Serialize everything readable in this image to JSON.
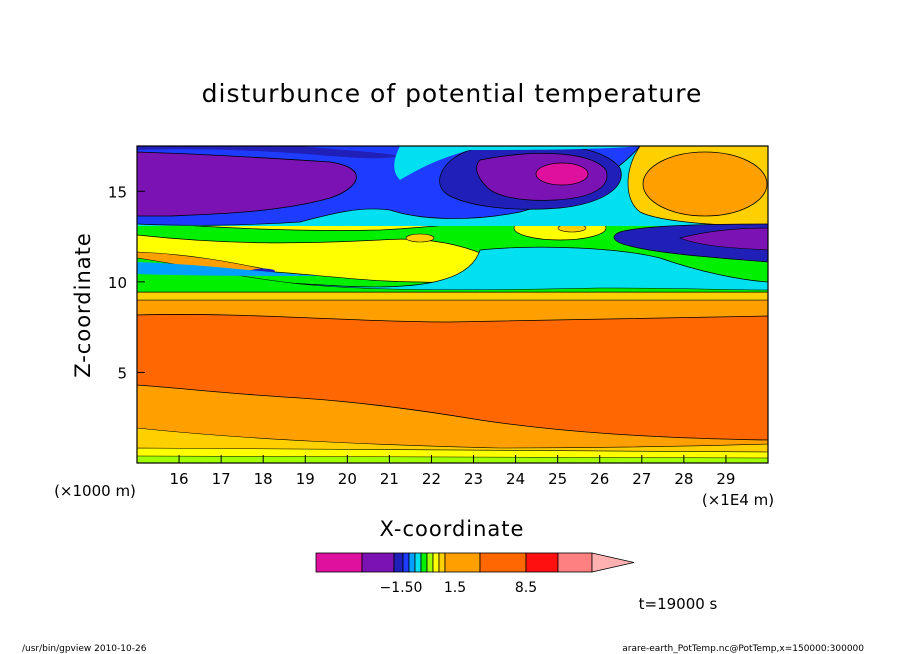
{
  "chart_data": {
    "type": "heatmap",
    "title": "disturbunce of potential temperature",
    "xlabel": "X-coordinate",
    "ylabel": "Z-coordinate",
    "xunit": "(×1E4 m)",
    "yunit": "(×1000 m)",
    "xlim": [
      15.0,
      30.0
    ],
    "ylim": [
      0.0,
      17.5
    ],
    "xticks": [
      "16",
      "17",
      "18",
      "19",
      "20",
      "21",
      "22",
      "23",
      "24",
      "25",
      "26",
      "27",
      "28",
      "29"
    ],
    "yticks": [
      "5",
      "10",
      "15"
    ],
    "colorbar": {
      "labels": [
        "−1.50",
        "1.5",
        "8.5"
      ],
      "colors": [
        "#e0109e",
        "#7a12b4",
        "#2020b8",
        "#1e3cff",
        "#00a0ff",
        "#00e0f0",
        "#00f000",
        "#a0ff00",
        "#ffff00",
        "#ffd000",
        "#ffa000",
        "#ff6800",
        "#ff1010",
        "#ff8080",
        "#ffb0b0"
      ]
    },
    "annotation": "t=19000 s"
  },
  "footer": {
    "left": "/usr/bin/gpview  2010-10-26",
    "right": "arare-earth_PotTemp.nc@PotTemp,x=150000:300000"
  }
}
